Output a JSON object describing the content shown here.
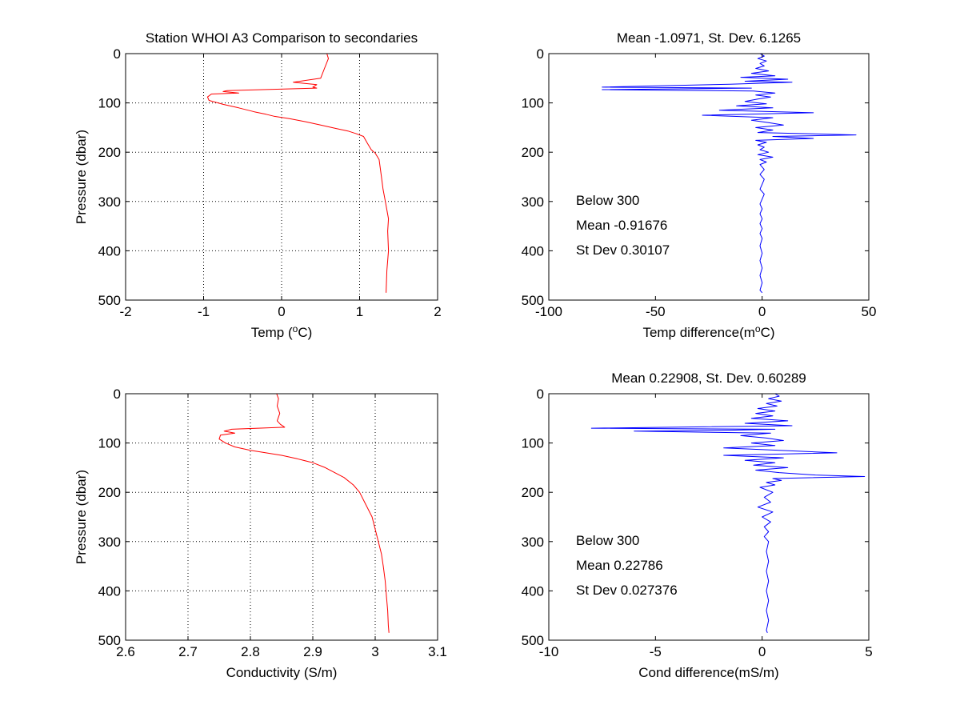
{
  "figure": {
    "colors": {
      "profile": "#ff0000",
      "difference": "#0000ff",
      "grid": "#000000",
      "frame": "#000000"
    }
  },
  "chart_data": [
    {
      "type": "line",
      "title": "Station  WHOI A3 Comparison to secondaries",
      "xlabel": "Temp (",
      "xlabel_sup": "o",
      "xlabel_end": "C)",
      "ylabel": "Pressure (dbar)",
      "xlim": [
        -2,
        2
      ],
      "ylim": [
        0,
        500
      ],
      "y_reversed": true,
      "grid": true,
      "xticks": [
        -2,
        -1,
        0,
        1,
        2
      ],
      "yticks": [
        0,
        100,
        200,
        300,
        400,
        500
      ],
      "xtick_labels": [
        "-2",
        "-1",
        "0",
        "1",
        "2"
      ],
      "ytick_labels": [
        "0",
        "100",
        "200",
        "300",
        "400",
        "500"
      ],
      "annotations": [],
      "series": [
        {
          "color": "#ff0000",
          "points": [
            [
              0.58,
              0
            ],
            [
              0.6,
              10
            ],
            [
              0.55,
              30
            ],
            [
              0.5,
              50
            ],
            [
              0.15,
              58
            ],
            [
              0.45,
              63
            ],
            [
              0.4,
              68
            ],
            [
              0.45,
              70
            ],
            [
              -0.7,
              75
            ],
            [
              -0.75,
              77
            ],
            [
              -0.55,
              80
            ],
            [
              -0.9,
              82
            ],
            [
              -0.95,
              88
            ],
            [
              -0.93,
              95
            ],
            [
              -0.75,
              103
            ],
            [
              -0.55,
              110
            ],
            [
              -0.35,
              118
            ],
            [
              -0.2,
              123
            ],
            [
              -0.1,
              127
            ],
            [
              0.1,
              132
            ],
            [
              0.3,
              138
            ],
            [
              0.5,
              145
            ],
            [
              0.7,
              152
            ],
            [
              0.85,
              157
            ],
            [
              0.95,
              162
            ],
            [
              1.05,
              168
            ],
            [
              1.1,
              182
            ],
            [
              1.15,
              195
            ],
            [
              1.2,
              202
            ],
            [
              1.25,
              215
            ],
            [
              1.28,
              250
            ],
            [
              1.3,
              275
            ],
            [
              1.33,
              300
            ],
            [
              1.37,
              335
            ],
            [
              1.36,
              360
            ],
            [
              1.37,
              400
            ],
            [
              1.35,
              440
            ],
            [
              1.34,
              485
            ]
          ]
        }
      ]
    },
    {
      "type": "line",
      "title": "Mean -1.0971, St. Dev. 6.1265",
      "xlabel": "Temp difference(m",
      "xlabel_sup": "o",
      "xlabel_end": "C)",
      "ylabel": "",
      "xlim": [
        -100,
        50
      ],
      "ylim": [
        0,
        500
      ],
      "y_reversed": true,
      "grid": false,
      "xticks": [
        -100,
        -50,
        0,
        50
      ],
      "yticks": [
        0,
        100,
        200,
        300,
        400,
        500
      ],
      "xtick_labels": [
        "-100",
        "-50",
        "0",
        "50"
      ],
      "ytick_labels": [
        "0",
        "100",
        "200",
        "300",
        "400",
        "500"
      ],
      "annotations": [
        "Below 300",
        "Mean -0.91676",
        "St Dev 0.30107"
      ],
      "series": [
        {
          "color": "#0000ff",
          "points": [
            [
              -1,
              0
            ],
            [
              1,
              5
            ],
            [
              -2,
              10
            ],
            [
              2,
              15
            ],
            [
              -1,
              20
            ],
            [
              1,
              25
            ],
            [
              -3,
              30
            ],
            [
              3,
              35
            ],
            [
              -5,
              40
            ],
            [
              6,
              45
            ],
            [
              -10,
              48
            ],
            [
              12,
              52
            ],
            [
              -8,
              56
            ],
            [
              14,
              58
            ],
            [
              -15,
              62
            ],
            [
              -75,
              68
            ],
            [
              -5,
              70
            ],
            [
              -75,
              73
            ],
            [
              -4,
              76
            ],
            [
              6,
              80
            ],
            [
              -3,
              84
            ],
            [
              4,
              88
            ],
            [
              -2,
              92
            ],
            [
              -8,
              97
            ],
            [
              2,
              102
            ],
            [
              -12,
              106
            ],
            [
              5,
              110
            ],
            [
              -20,
              115
            ],
            [
              24,
              120
            ],
            [
              -28,
              125
            ],
            [
              5,
              130
            ],
            [
              -5,
              135
            ],
            [
              3,
              140
            ],
            [
              10,
              145
            ],
            [
              -3,
              150
            ],
            [
              5,
              155
            ],
            [
              -2,
              160
            ],
            [
              44,
              165
            ],
            [
              5,
              168
            ],
            [
              24,
              172
            ],
            [
              -3,
              176
            ],
            [
              2,
              180
            ],
            [
              -2,
              185
            ],
            [
              1,
              190
            ],
            [
              -1,
              195
            ],
            [
              3,
              200
            ],
            [
              -2,
              205
            ],
            [
              5,
              210
            ],
            [
              -1,
              215
            ],
            [
              2,
              220
            ],
            [
              -1,
              225
            ],
            [
              1,
              235
            ],
            [
              -1,
              245
            ],
            [
              1,
              255
            ],
            [
              0,
              265
            ],
            [
              -1,
              275
            ],
            [
              1,
              285
            ],
            [
              0,
              295
            ],
            [
              -1,
              305
            ],
            [
              0,
              315
            ],
            [
              -1,
              325
            ],
            [
              0,
              335
            ],
            [
              -1,
              345
            ],
            [
              0,
              355
            ],
            [
              -1,
              365
            ],
            [
              0,
              375
            ],
            [
              -1,
              390
            ],
            [
              0,
              405
            ],
            [
              -1,
              420
            ],
            [
              0,
              435
            ],
            [
              -1,
              450
            ],
            [
              0,
              465
            ],
            [
              -1,
              480
            ],
            [
              0,
              485
            ]
          ]
        }
      ]
    },
    {
      "type": "line",
      "title": "",
      "xlabel": "Conductivity (S/m)",
      "xlabel_sup": "",
      "xlabel_end": "",
      "ylabel": "Pressure (dbar)",
      "xlim": [
        2.6,
        3.1
      ],
      "ylim": [
        0,
        500
      ],
      "y_reversed": true,
      "grid": true,
      "xticks": [
        2.6,
        2.7,
        2.8,
        2.9,
        3.0,
        3.1
      ],
      "yticks": [
        0,
        100,
        200,
        300,
        400,
        500
      ],
      "xtick_labels": [
        "2.6",
        "2.7",
        "2.8",
        "2.9",
        "3",
        "3.1"
      ],
      "ytick_labels": [
        "0",
        "100",
        "200",
        "300",
        "400",
        "500"
      ],
      "annotations": [],
      "series": [
        {
          "color": "#ff0000",
          "points": [
            [
              2.842,
              0
            ],
            [
              2.845,
              10
            ],
            [
              2.843,
              25
            ],
            [
              2.847,
              40
            ],
            [
              2.843,
              55
            ],
            [
              2.848,
              62
            ],
            [
              2.855,
              68
            ],
            [
              2.77,
              72
            ],
            [
              2.758,
              76
            ],
            [
              2.775,
              80
            ],
            [
              2.752,
              84
            ],
            [
              2.75,
              92
            ],
            [
              2.76,
              100
            ],
            [
              2.775,
              108
            ],
            [
              2.8,
              115
            ],
            [
              2.825,
              120
            ],
            [
              2.85,
              125
            ],
            [
              2.875,
              132
            ],
            [
              2.9,
              140
            ],
            [
              2.92,
              150
            ],
            [
              2.935,
              160
            ],
            [
              2.95,
              170
            ],
            [
              2.965,
              185
            ],
            [
              2.975,
              200
            ],
            [
              2.985,
              225
            ],
            [
              2.995,
              250
            ],
            [
              3.0,
              275
            ],
            [
              3.005,
              300
            ],
            [
              3.01,
              325
            ],
            [
              3.013,
              350
            ],
            [
              3.016,
              380
            ],
            [
              3.018,
              410
            ],
            [
              3.02,
              440
            ],
            [
              3.021,
              470
            ],
            [
              3.022,
              485
            ]
          ]
        }
      ]
    },
    {
      "type": "line",
      "title": "Mean 0.22908, St. Dev. 0.60289",
      "xlabel": "Cond difference(mS/m)",
      "xlabel_sup": "",
      "xlabel_end": "",
      "ylabel": "",
      "xlim": [
        -10,
        5
      ],
      "ylim": [
        0,
        500
      ],
      "y_reversed": true,
      "grid": false,
      "xticks": [
        -10,
        -5,
        0,
        5
      ],
      "yticks": [
        0,
        100,
        200,
        300,
        400,
        500
      ],
      "xtick_labels": [
        "-10",
        "-5",
        "0",
        "5"
      ],
      "ytick_labels": [
        "0",
        "100",
        "200",
        "300",
        "400",
        "500"
      ],
      "annotations": [
        "Below 300",
        "Mean 0.22786",
        "St Dev 0.027376"
      ],
      "series": [
        {
          "color": "#0000ff",
          "points": [
            [
              0.6,
              0
            ],
            [
              0.8,
              5
            ],
            [
              0.3,
              10
            ],
            [
              0.9,
              15
            ],
            [
              0.2,
              20
            ],
            [
              0.7,
              25
            ],
            [
              -0.2,
              30
            ],
            [
              0.6,
              35
            ],
            [
              -0.3,
              40
            ],
            [
              0.5,
              45
            ],
            [
              -0.5,
              50
            ],
            [
              1.2,
              55
            ],
            [
              -0.8,
              60
            ],
            [
              1.4,
              65
            ],
            [
              -8.0,
              70
            ],
            [
              0.6,
              72
            ],
            [
              -1.5,
              74
            ],
            [
              -6.0,
              76
            ],
            [
              0.4,
              80
            ],
            [
              -1.0,
              85
            ],
            [
              0.2,
              90
            ],
            [
              1.0,
              95
            ],
            [
              -0.5,
              100
            ],
            [
              0.6,
              105
            ],
            [
              -1.8,
              110
            ],
            [
              0.8,
              115
            ],
            [
              3.5,
              120
            ],
            [
              -1.8,
              125
            ],
            [
              1.0,
              130
            ],
            [
              -0.8,
              135
            ],
            [
              0.6,
              140
            ],
            [
              -0.4,
              145
            ],
            [
              1.2,
              150
            ],
            [
              -0.3,
              155
            ],
            [
              0.8,
              160
            ],
            [
              2.5,
              165
            ],
            [
              4.8,
              168
            ],
            [
              0.5,
              172
            ],
            [
              0.9,
              176
            ],
            [
              0.2,
              180
            ],
            [
              0.6,
              185
            ],
            [
              -0.1,
              190
            ],
            [
              0.5,
              200
            ],
            [
              0.1,
              210
            ],
            [
              0.4,
              220
            ],
            [
              -0.2,
              230
            ],
            [
              0.5,
              240
            ],
            [
              0.0,
              250
            ],
            [
              0.4,
              260
            ],
            [
              0.1,
              270
            ],
            [
              0.3,
              280
            ],
            [
              0.1,
              290
            ],
            [
              0.3,
              300
            ],
            [
              0.2,
              320
            ],
            [
              0.3,
              340
            ],
            [
              0.2,
              360
            ],
            [
              0.3,
              380
            ],
            [
              0.2,
              400
            ],
            [
              0.3,
              420
            ],
            [
              0.2,
              440
            ],
            [
              0.3,
              460
            ],
            [
              0.2,
              480
            ],
            [
              0.25,
              485
            ]
          ]
        }
      ]
    }
  ]
}
